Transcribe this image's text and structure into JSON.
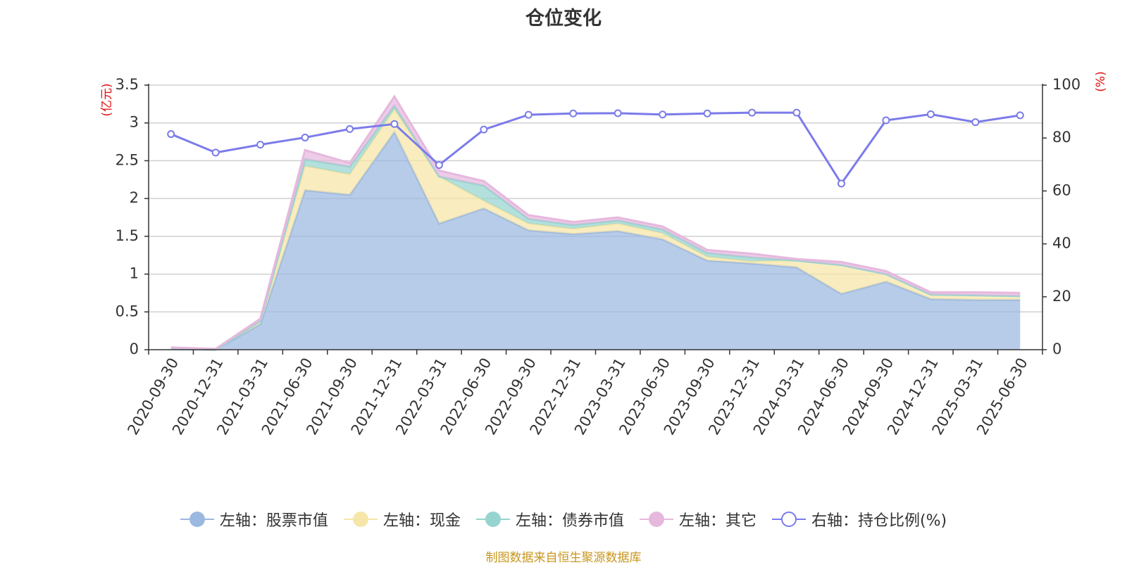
{
  "title": "仓位变化",
  "source_note": "制图数据来自恒生聚源数据库",
  "left_axis_unit": "(亿元)",
  "right_axis_unit": "(%)",
  "legend": [
    {
      "label": "左轴：股票市值",
      "color": "#9bb8e0",
      "icon": "filled-circle-icon"
    },
    {
      "label": "左轴：现金",
      "color": "#f6e6a8",
      "icon": "filled-circle-icon"
    },
    {
      "label": "左轴：债券市值",
      "color": "#96d4d0",
      "icon": "filled-circle-icon"
    },
    {
      "label": "左轴：其它",
      "color": "#e6b8de",
      "icon": "filled-circle-icon"
    },
    {
      "label": "右轴：持仓比例(%)",
      "color": "#7b7bea",
      "icon": "hollow-circle-icon"
    }
  ],
  "chart_data": {
    "type": "area",
    "title": "仓位变化",
    "categories": [
      "2020-09-30",
      "2020-12-31",
      "2021-03-31",
      "2021-06-30",
      "2021-09-30",
      "2021-12-31",
      "2022-03-31",
      "2022-06-30",
      "2022-09-30",
      "2022-12-31",
      "2023-03-31",
      "2023-06-30",
      "2023-09-30",
      "2023-12-31",
      "2024-03-31",
      "2024-06-30",
      "2024-09-30",
      "2024-12-31",
      "2025-03-31",
      "2025-06-30"
    ],
    "left_axis": {
      "label": "(亿元)",
      "ylim": [
        0,
        3.5
      ],
      "ticks": [
        "0",
        "0.5",
        "1",
        "1.5",
        "2",
        "2.5",
        "3",
        "3.5"
      ]
    },
    "right_axis": {
      "label": "(%)",
      "ylim": [
        0,
        100
      ],
      "ticks": [
        "0",
        "20",
        "40",
        "60",
        "80",
        "100"
      ]
    },
    "stacked": true,
    "grid": true,
    "legend_position": "bottom",
    "series": [
      {
        "name": "左轴：股票市值",
        "axis": "left",
        "type": "area",
        "color": "#9bb8e0",
        "values": [
          0.01,
          0.0,
          0.34,
          2.11,
          2.05,
          2.88,
          1.67,
          1.87,
          1.58,
          1.53,
          1.57,
          1.46,
          1.18,
          1.14,
          1.09,
          0.74,
          0.9,
          0.67,
          0.66,
          0.66
        ]
      },
      {
        "name": "左轴：现金",
        "axis": "left",
        "type": "area",
        "color": "#f6e6a8",
        "values": [
          0.01,
          0.0,
          0.04,
          0.32,
          0.27,
          0.3,
          0.62,
          0.1,
          0.09,
          0.07,
          0.1,
          0.08,
          0.05,
          0.03,
          0.09,
          0.38,
          0.1,
          0.06,
          0.06,
          0.05
        ]
      },
      {
        "name": "左轴：债券市值",
        "axis": "left",
        "type": "area",
        "color": "#96d4d0",
        "values": [
          0.0,
          0.0,
          0.0,
          0.09,
          0.1,
          0.05,
          0.0,
          0.2,
          0.06,
          0.05,
          0.04,
          0.05,
          0.05,
          0.05,
          0.0,
          0.0,
          0.0,
          0.0,
          0.0,
          0.0
        ]
      },
      {
        "name": "左轴：其它",
        "axis": "left",
        "type": "area",
        "color": "#e6b8de",
        "values": [
          0.01,
          0.01,
          0.03,
          0.12,
          0.05,
          0.12,
          0.08,
          0.06,
          0.05,
          0.04,
          0.04,
          0.04,
          0.04,
          0.05,
          0.02,
          0.04,
          0.04,
          0.03,
          0.04,
          0.04
        ]
      },
      {
        "name": "右轴：持仓比例(%)",
        "axis": "right",
        "type": "line",
        "color": "#7b7bea",
        "values": [
          81.5,
          74.5,
          77.5,
          80.2,
          83.4,
          85.3,
          69.8,
          83.2,
          88.8,
          89.3,
          89.4,
          88.9,
          89.3,
          89.6,
          89.6,
          62.8,
          86.7,
          89.0,
          86.0,
          88.6
        ]
      }
    ]
  }
}
